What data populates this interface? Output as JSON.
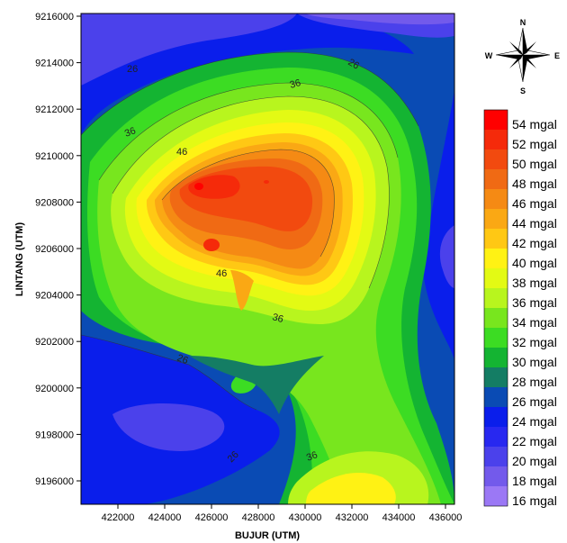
{
  "map": {
    "x_axis_title": "BUJUR (UTM)",
    "y_axis_title": "LINTANG (UTM)",
    "x_ticks": [
      "422000",
      "424000",
      "426000",
      "428000",
      "430000",
      "432000",
      "434000",
      "436000"
    ],
    "y_ticks": [
      "9216000",
      "9214000",
      "9212000",
      "9210000",
      "9208000",
      "9206000",
      "9204000",
      "9202000",
      "9200000",
      "9198000",
      "9196000"
    ],
    "contour_labels": [
      {
        "text": "26"
      },
      {
        "text": "26"
      },
      {
        "text": "36"
      },
      {
        "text": "36"
      },
      {
        "text": "46"
      },
      {
        "text": "46"
      },
      {
        "text": "36"
      },
      {
        "text": "26"
      },
      {
        "text": "26"
      },
      {
        "text": "36"
      }
    ]
  },
  "compass": {
    "n": "N",
    "s": "S",
    "e": "E",
    "w": "W"
  },
  "legend": {
    "items": [
      {
        "label": "54 mgal",
        "color": "#ff0000"
      },
      {
        "label": "52 mgal",
        "color": "#f52a0a"
      },
      {
        "label": "50 mgal",
        "color": "#f24a0f"
      },
      {
        "label": "48 mgal",
        "color": "#f06a14"
      },
      {
        "label": "46 mgal",
        "color": "#f58a14"
      },
      {
        "label": "44 mgal",
        "color": "#faa814"
      },
      {
        "label": "42 mgal",
        "color": "#ffc814"
      },
      {
        "label": "40 mgal",
        "color": "#fff214"
      },
      {
        "label": "38 mgal",
        "color": "#e3fa14"
      },
      {
        "label": "36 mgal",
        "color": "#b8f51e"
      },
      {
        "label": "34 mgal",
        "color": "#78e61e"
      },
      {
        "label": "32 mgal",
        "color": "#3cdc23"
      },
      {
        "label": "30 mgal",
        "color": "#14b432"
      },
      {
        "label": "28 mgal",
        "color": "#147d64"
      },
      {
        "label": "26 mgal",
        "color": "#0a4bb4"
      },
      {
        "label": "24 mgal",
        "color": "#0a1eeb"
      },
      {
        "label": "22 mgal",
        "color": "#2828f0"
      },
      {
        "label": "20 mgal",
        "color": "#4b41eb"
      },
      {
        "label": "18 mgal",
        "color": "#735aeb"
      },
      {
        "label": "16 mgal",
        "color": "#9b78f5"
      }
    ]
  }
}
